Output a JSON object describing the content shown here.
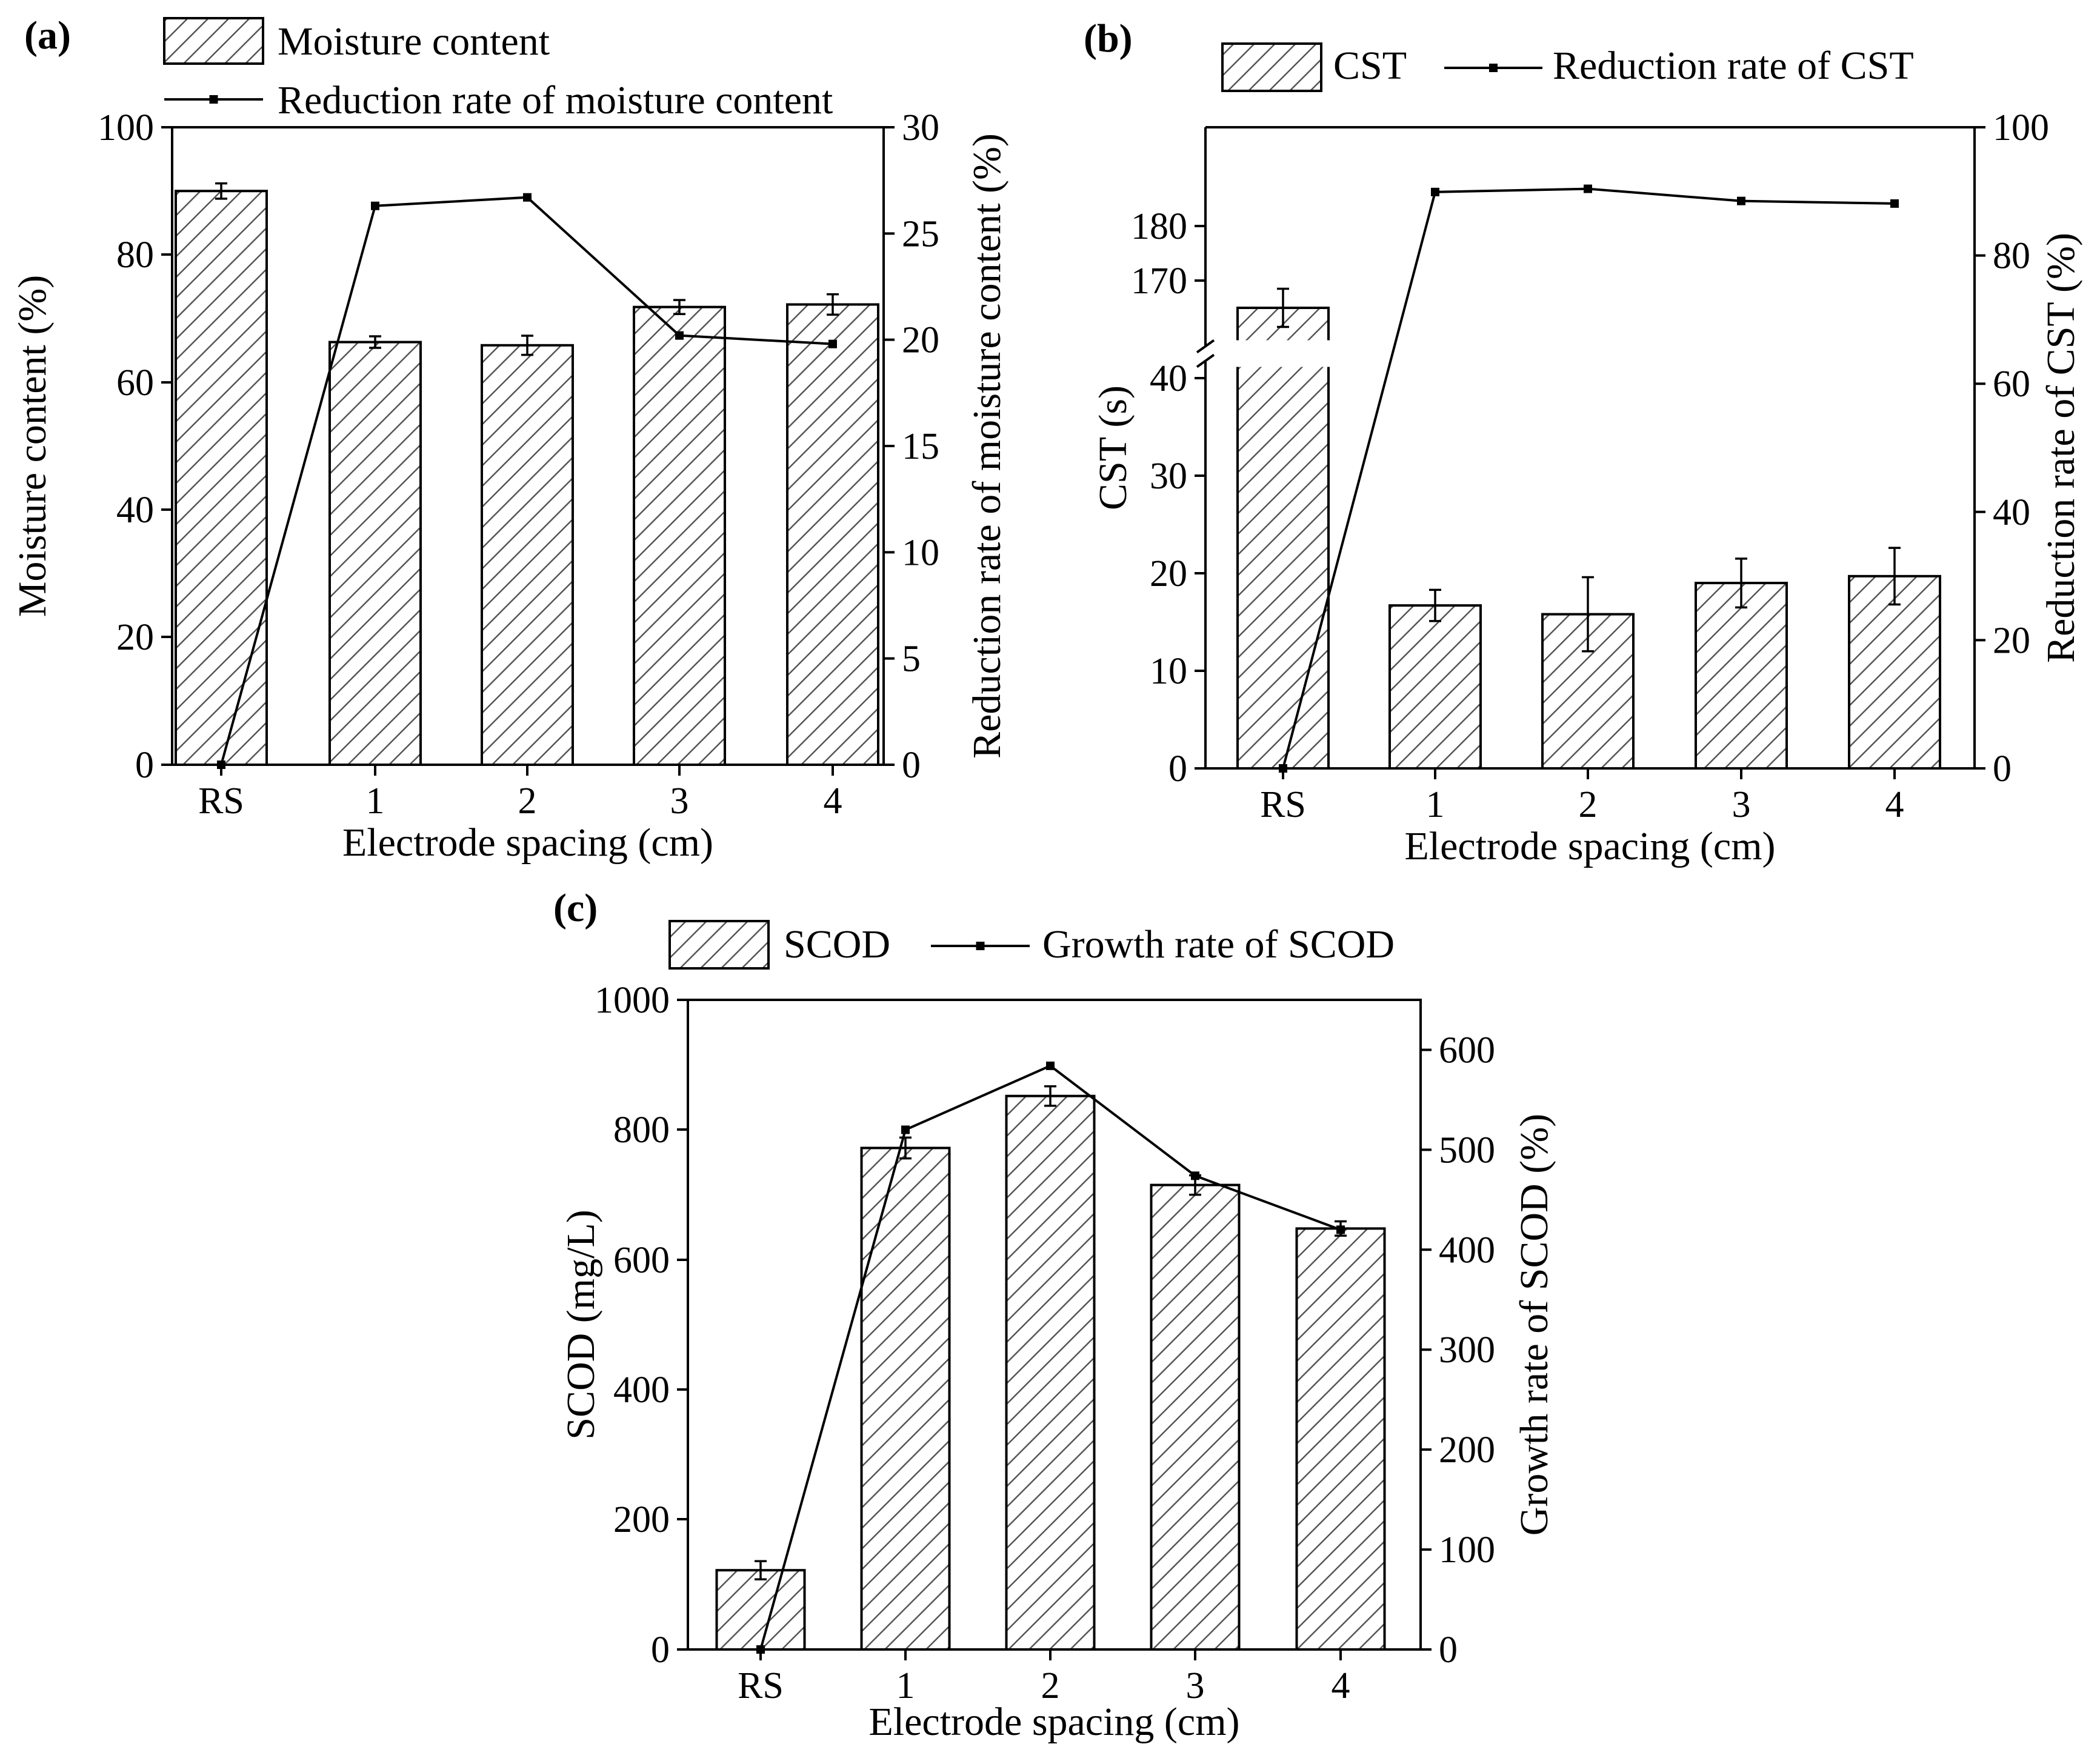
{
  "chart_data": [
    {
      "panel": "(a)",
      "type": "bar",
      "categories": [
        "RS",
        "1",
        "2",
        "3",
        "4"
      ],
      "xlabel": "Electrode spacing (cm)",
      "ylabel": "Moisture content (%)",
      "y2label": "Reduction rate of moisture content (%)",
      "ylim": [
        0,
        100
      ],
      "yticks": [
        0,
        20,
        40,
        60,
        80,
        100
      ],
      "y2lim": [
        0,
        30
      ],
      "y2ticks": [
        0,
        5,
        10,
        15,
        20,
        25,
        30
      ],
      "legend": [
        "Moisture content",
        "Reduction rate of moisture content"
      ],
      "bars": {
        "name": "Moisture content",
        "values": [
          90,
          66.3,
          65.8,
          71.8,
          72.2
        ],
        "errors": [
          1.2,
          0.9,
          1.5,
          1.1,
          1.6
        ]
      },
      "line": {
        "name": "Reduction rate of moisture content",
        "values": [
          0,
          26.3,
          26.7,
          20.2,
          19.8
        ]
      }
    },
    {
      "panel": "(b)",
      "type": "bar",
      "categories": [
        "RS",
        "1",
        "2",
        "3",
        "4"
      ],
      "xlabel": "Electrode spacing (cm)",
      "ylabel": "CST (s)",
      "y2label": "Reduction rate of CST (%)",
      "yticks": [
        0,
        10,
        20,
        30,
        40,
        170,
        180
      ],
      "y_break": [
        45,
        160
      ],
      "y2lim": [
        0,
        100
      ],
      "y2ticks": [
        0,
        20,
        40,
        60,
        80,
        100
      ],
      "legend": [
        "CST",
        "Reduction rate of CST"
      ],
      "bars": {
        "name": "CST",
        "values": [
          165,
          16.7,
          15.8,
          19,
          19.7
        ],
        "errors": [
          3.5,
          1.6,
          3.8,
          2.5,
          2.9
        ]
      },
      "line": {
        "name": "Reduction rate of CST",
        "values": [
          0,
          89.9,
          90.4,
          88.5,
          88.1
        ]
      }
    },
    {
      "panel": "(c)",
      "type": "bar",
      "categories": [
        "RS",
        "1",
        "2",
        "3",
        "4"
      ],
      "xlabel": "Electrode spacing (cm)",
      "ylabel": "SCOD (mg/L)",
      "y2label": "Growth rate of SCOD (%)",
      "ylim": [
        0,
        1000
      ],
      "yticks": [
        0,
        200,
        400,
        600,
        800,
        1000
      ],
      "y2lim": [
        0,
        650
      ],
      "y2ticks": [
        0,
        100,
        200,
        300,
        400,
        500,
        600
      ],
      "legend": [
        "SCOD",
        "Growth rate of SCOD"
      ],
      "bars": {
        "name": "SCOD",
        "values": [
          122,
          772,
          852,
          715,
          648
        ],
        "errors": [
          14,
          16,
          15,
          15,
          11
        ]
      },
      "line": {
        "name": "Growth rate of SCOD",
        "values": [
          0,
          520,
          584,
          474,
          420
        ]
      }
    }
  ]
}
